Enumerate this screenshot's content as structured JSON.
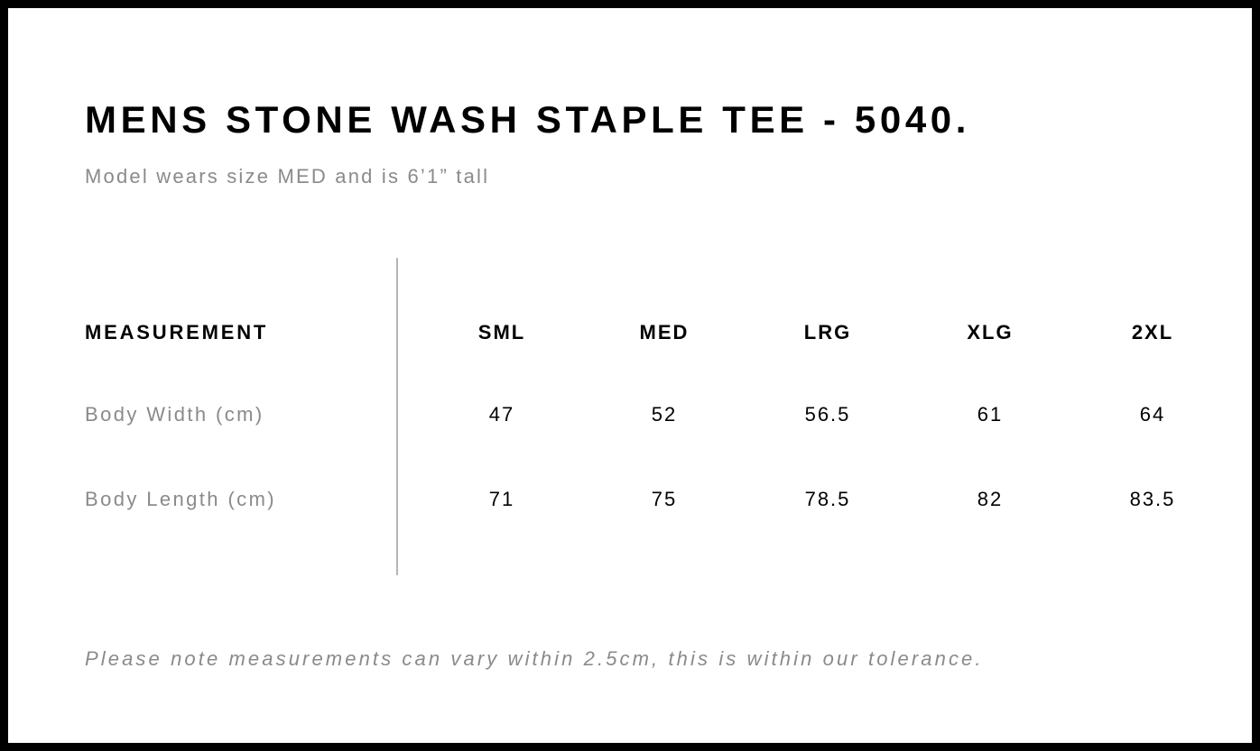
{
  "title": "MENS STONE WASH STAPLE TEE - 5040.",
  "subtitle": "Model wears size MED and is 6’1” tall",
  "table": {
    "header": {
      "label": "MEASUREMENT",
      "sizes": [
        "SML",
        "MED",
        "LRG",
        "XLG",
        "2XL"
      ]
    },
    "rows": [
      {
        "label": "Body Width (cm)",
        "values": [
          "47",
          "52",
          "56.5",
          "61",
          "64"
        ]
      },
      {
        "label": "Body Length (cm)",
        "values": [
          "71",
          "75",
          "78.5",
          "82",
          "83.5"
        ]
      }
    ]
  },
  "note": "Please note measurements can vary within 2.5cm, this is within our tolerance."
}
